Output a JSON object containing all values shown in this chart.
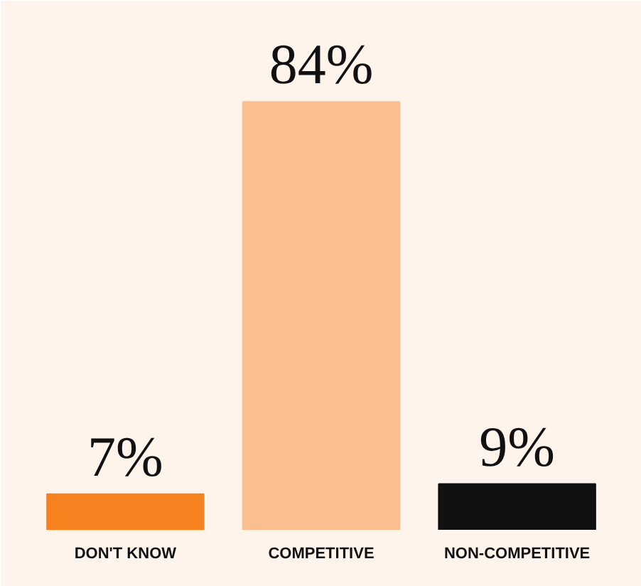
{
  "chart_data": {
    "type": "bar",
    "categories": [
      "DON'T KNOW",
      "COMPETITIVE",
      "NON-COMPETITIVE"
    ],
    "values": [
      7,
      84,
      9
    ],
    "colors": [
      "#f5821f",
      "#fbbf8f",
      "#111111"
    ],
    "value_labels": [
      "7%",
      "84%",
      "9%"
    ],
    "grid": false
  }
}
